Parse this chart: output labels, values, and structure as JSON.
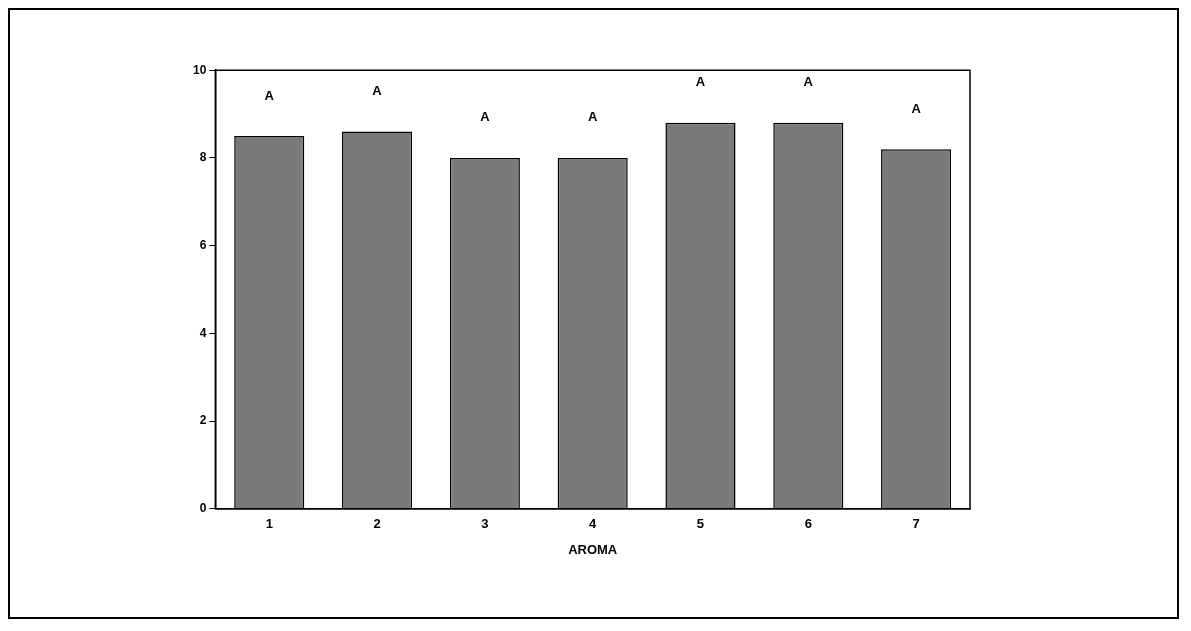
{
  "chart_data": {
    "type": "bar",
    "xlabel": "AROMA",
    "categories": [
      "1",
      "2",
      "3",
      "4",
      "5",
      "6",
      "7"
    ],
    "values": [
      8.5,
      8.6,
      8.0,
      8.0,
      8.8,
      8.8,
      8.2
    ],
    "color": "#7a7a7a",
    "ylim": [
      0,
      10
    ],
    "yticks": [
      0,
      2,
      4,
      6,
      8,
      10
    ],
    "grid": false,
    "legend": false,
    "annotations": [
      "A",
      "A",
      "A",
      "A",
      "A",
      "A",
      "A"
    ]
  }
}
